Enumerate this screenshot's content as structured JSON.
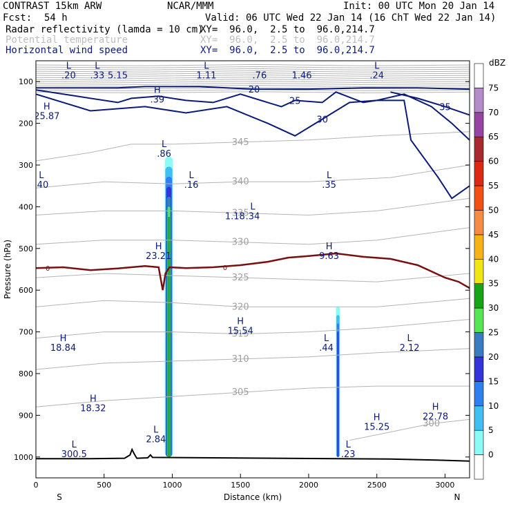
{
  "header": {
    "model": "CONTRAST 15km ARW",
    "org": "NCAR/MMM",
    "init": "Init: 00 UTC Mon 20 Jan 14",
    "fcst_label": "Fcst:",
    "fcst_value": "54 h",
    "valid": "Valid: 06 UTC Wed 22 Jan 14 (16 ChT Wed 22 Jan 14)",
    "fields": [
      {
        "name": "Radar reflectivity (lamda = 10 cm)",
        "xy": "XY=  96.0,  2.5 to  96.0,214.7",
        "color": "#000000"
      },
      {
        "name": "Potential temperature",
        "xy": "XY=  96.0,  2.5 to  96.0,214.7",
        "color": "#bdbdbd"
      },
      {
        "name": "Horizontal wind speed",
        "xy": "XY=  96.0,  2.5 to  96.0,214.7",
        "color": "#0a1a78"
      }
    ]
  },
  "colorbar": {
    "unit": "dBZ",
    "levels": [
      0,
      5,
      10,
      15,
      20,
      25,
      30,
      35,
      40,
      45,
      50,
      55,
      60,
      65,
      70,
      75
    ],
    "colors": [
      "#ffffff",
      "#8cfaf5",
      "#3fc0f0",
      "#2e7ff0",
      "#3434dc",
      "#3a7cc0",
      "#55e655",
      "#16a516",
      "#f0e614",
      "#f5b414",
      "#f58c46",
      "#f55014",
      "#dc2814",
      "#aa2830",
      "#9646a0",
      "#b48cc8",
      "#ffffff"
    ]
  },
  "chart_data": {
    "type": "contour cross-section",
    "xlabel": "Distance (km)",
    "ylabel": "Pressure (hPa)",
    "xlim": [
      0,
      3180
    ],
    "ylim": [
      1050,
      50
    ],
    "x_ticks": [
      0,
      500,
      1000,
      1500,
      2000,
      2500,
      3000
    ],
    "y_ticks": [
      100,
      200,
      300,
      400,
      500,
      600,
      700,
      800,
      900,
      1000
    ],
    "end_labels": {
      "left": "S",
      "right": "N"
    },
    "terrain": [
      [
        0,
        1004
      ],
      [
        400,
        1004
      ],
      [
        650,
        1003
      ],
      [
        690,
        995
      ],
      [
        705,
        982
      ],
      [
        720,
        992
      ],
      [
        740,
        1003
      ],
      [
        820,
        1002
      ],
      [
        840,
        995
      ],
      [
        855,
        1001
      ],
      [
        2600,
        1005
      ],
      [
        3000,
        1008
      ],
      [
        3180,
        1010
      ]
    ],
    "freezing_level": {
      "label": "0",
      "points": [
        [
          0,
          547
        ],
        [
          200,
          545
        ],
        [
          400,
          552
        ],
        [
          600,
          548
        ],
        [
          800,
          542
        ],
        [
          900,
          545
        ],
        [
          930,
          600
        ],
        [
          950,
          560
        ],
        [
          980,
          545
        ],
        [
          1100,
          547
        ],
        [
          1300,
          545
        ],
        [
          1500,
          540
        ],
        [
          1700,
          532
        ],
        [
          1850,
          522
        ],
        [
          2000,
          518
        ],
        [
          2200,
          512
        ],
        [
          2400,
          520
        ],
        [
          2600,
          525
        ],
        [
          2800,
          540
        ],
        [
          2900,
          555
        ],
        [
          3000,
          570
        ],
        [
          3100,
          580
        ],
        [
          3180,
          595
        ]
      ]
    },
    "reflectivity_cells": [
      {
        "x_center": 975,
        "half_width": 30,
        "top": 280,
        "bottom": 1000,
        "max_dbz": 35
      },
      {
        "x_center": 2215,
        "half_width": 15,
        "top": 640,
        "bottom": 1000,
        "max_dbz": 20
      }
    ],
    "wind_contours": [
      {
        "label": "20",
        "points": [
          [
            0,
            115
          ],
          [
            300,
            115
          ],
          [
            600,
            115
          ],
          [
            800,
            112
          ],
          [
            1200,
            112
          ],
          [
            1600,
            118
          ],
          [
            2000,
            118
          ],
          [
            2400,
            115
          ],
          [
            2800,
            115
          ],
          [
            3180,
            118
          ]
        ]
      },
      {
        "label": "25",
        "points": [
          [
            0,
            120
          ],
          [
            300,
            135
          ],
          [
            600,
            150
          ],
          [
            700,
            140
          ],
          [
            900,
            135
          ],
          [
            1100,
            145
          ],
          [
            1300,
            150
          ],
          [
            1500,
            130
          ],
          [
            1700,
            150
          ],
          [
            1800,
            160
          ],
          [
            1900,
            145
          ],
          [
            2100,
            150
          ],
          [
            2200,
            125
          ],
          [
            2400,
            150
          ],
          [
            2500,
            145
          ],
          [
            2700,
            145
          ],
          [
            2750,
            240
          ],
          [
            2950,
            330
          ],
          [
            3050,
            380
          ],
          [
            3180,
            350
          ]
        ]
      },
      {
        "label": "30",
        "points": [
          [
            0,
            130
          ],
          [
            400,
            170
          ],
          [
            800,
            160
          ],
          [
            1100,
            175
          ],
          [
            1400,
            160
          ],
          [
            1700,
            200
          ],
          [
            1900,
            230
          ],
          [
            2100,
            190
          ],
          [
            2300,
            150
          ],
          [
            2500,
            145
          ],
          [
            2700,
            130
          ],
          [
            2900,
            160
          ],
          [
            3050,
            200
          ],
          [
            3180,
            240
          ]
        ]
      },
      {
        "label": "35",
        "points": [
          [
            2600,
            125
          ],
          [
            2800,
            140
          ],
          [
            3000,
            160
          ],
          [
            3180,
            180
          ]
        ]
      }
    ],
    "theta_contours": [
      {
        "label": "345",
        "points": [
          [
            0,
            290
          ],
          [
            400,
            270
          ],
          [
            700,
            250
          ],
          [
            1000,
            250
          ],
          [
            1500,
            245
          ],
          [
            2000,
            240
          ],
          [
            2500,
            230
          ],
          [
            3180,
            220
          ]
        ]
      },
      {
        "label": "340",
        "points": [
          [
            0,
            355
          ],
          [
            500,
            340
          ],
          [
            1000,
            345
          ],
          [
            1500,
            340
          ],
          [
            2000,
            340
          ],
          [
            2600,
            330
          ],
          [
            3180,
            300
          ]
        ]
      },
      {
        "label": "335",
        "points": [
          [
            0,
            420
          ],
          [
            500,
            410
          ],
          [
            1000,
            410
          ],
          [
            1500,
            415
          ],
          [
            2000,
            420
          ],
          [
            2500,
            410
          ],
          [
            3180,
            380
          ]
        ]
      },
      {
        "label": "330",
        "points": [
          [
            0,
            490
          ],
          [
            500,
            480
          ],
          [
            1000,
            480
          ],
          [
            1500,
            485
          ],
          [
            2000,
            490
          ],
          [
            2500,
            480
          ],
          [
            3180,
            450
          ]
        ]
      },
      {
        "label": "325",
        "points": [
          [
            0,
            570
          ],
          [
            500,
            560
          ],
          [
            1000,
            565
          ],
          [
            1500,
            570
          ],
          [
            2000,
            575
          ],
          [
            2500,
            580
          ],
          [
            3180,
            560
          ]
        ]
      },
      {
        "label": "320",
        "points": [
          [
            0,
            640
          ],
          [
            500,
            625
          ],
          [
            1000,
            630
          ],
          [
            1500,
            640
          ],
          [
            2000,
            640
          ],
          [
            2500,
            640
          ],
          [
            3180,
            620
          ]
        ]
      },
      {
        "label": "315",
        "points": [
          [
            0,
            715
          ],
          [
            500,
            700
          ],
          [
            1000,
            700
          ],
          [
            1500,
            705
          ],
          [
            2000,
            700
          ],
          [
            2500,
            690
          ],
          [
            3180,
            670
          ]
        ]
      },
      {
        "label": "310",
        "points": [
          [
            0,
            790
          ],
          [
            500,
            775
          ],
          [
            1000,
            770
          ],
          [
            1500,
            765
          ],
          [
            2000,
            760
          ],
          [
            2500,
            750
          ],
          [
            3180,
            740
          ]
        ]
      },
      {
        "label": "305",
        "points": [
          [
            0,
            880
          ],
          [
            500,
            865
          ],
          [
            1000,
            855
          ],
          [
            1500,
            845
          ],
          [
            2000,
            835
          ],
          [
            2500,
            830
          ],
          [
            3180,
            830
          ]
        ]
      },
      {
        "label": "300",
        "points": [
          [
            2300,
            960
          ],
          [
            2600,
            940
          ],
          [
            2900,
            920
          ],
          [
            3180,
            910
          ]
        ]
      }
    ],
    "annotations": [
      {
        "x": 80,
        "p": 190,
        "hl": "H",
        "value": "25.87"
      },
      {
        "x": 240,
        "p": 92,
        "hl": "L",
        "value": ".20"
      },
      {
        "x": 450,
        "p": 92,
        "hl": "L",
        "value": ".33"
      },
      {
        "x": 600,
        "p": 92,
        "hl": "",
        "value": "5.15"
      },
      {
        "x": 1250,
        "p": 92,
        "hl": "L",
        "value": "1.11"
      },
      {
        "x": 1640,
        "p": 92,
        "hl": "",
        "value": ".76"
      },
      {
        "x": 1950,
        "p": 92,
        "hl": "",
        "value": "1.46"
      },
      {
        "x": 2500,
        "p": 92,
        "hl": "L",
        "value": ".24"
      },
      {
        "x": 890,
        "p": 150,
        "hl": "H",
        "value": ".39"
      },
      {
        "x": 940,
        "p": 280,
        "hl": "L",
        "value": ".86"
      },
      {
        "x": 40,
        "p": 355,
        "hl": "L",
        "value": ".40"
      },
      {
        "x": 1140,
        "p": 355,
        "hl": "L",
        "value": ".16"
      },
      {
        "x": 2150,
        "p": 355,
        "hl": "L",
        "value": ".35"
      },
      {
        "x": 1590,
        "p": 430,
        "hl": "L",
        "value": ".34"
      },
      {
        "x": 1460,
        "p": 430,
        "hl": "",
        "value": "1.18"
      },
      {
        "x": 900,
        "p": 525,
        "hl": "H",
        "value": "23.21"
      },
      {
        "x": 2150,
        "p": 525,
        "hl": "H",
        "value": "9.63"
      },
      {
        "x": 1500,
        "p": 705,
        "hl": "H",
        "value": "15.54"
      },
      {
        "x": 200,
        "p": 745,
        "hl": "H",
        "value": "18.84"
      },
      {
        "x": 2130,
        "p": 745,
        "hl": "L",
        "value": ".44"
      },
      {
        "x": 2740,
        "p": 745,
        "hl": "L",
        "value": "2.12"
      },
      {
        "x": 420,
        "p": 890,
        "hl": "H",
        "value": "18.32"
      },
      {
        "x": 2500,
        "p": 935,
        "hl": "H",
        "value": "15.25"
      },
      {
        "x": 2930,
        "p": 910,
        "hl": "H",
        "value": "22.78"
      },
      {
        "x": 880,
        "p": 965,
        "hl": "L",
        "value": "2.84"
      },
      {
        "x": 2290,
        "p": 1000,
        "hl": "L",
        "value": ".23"
      },
      {
        "x": 280,
        "p": 1000,
        "hl": "L",
        "value": "300.5"
      }
    ]
  }
}
